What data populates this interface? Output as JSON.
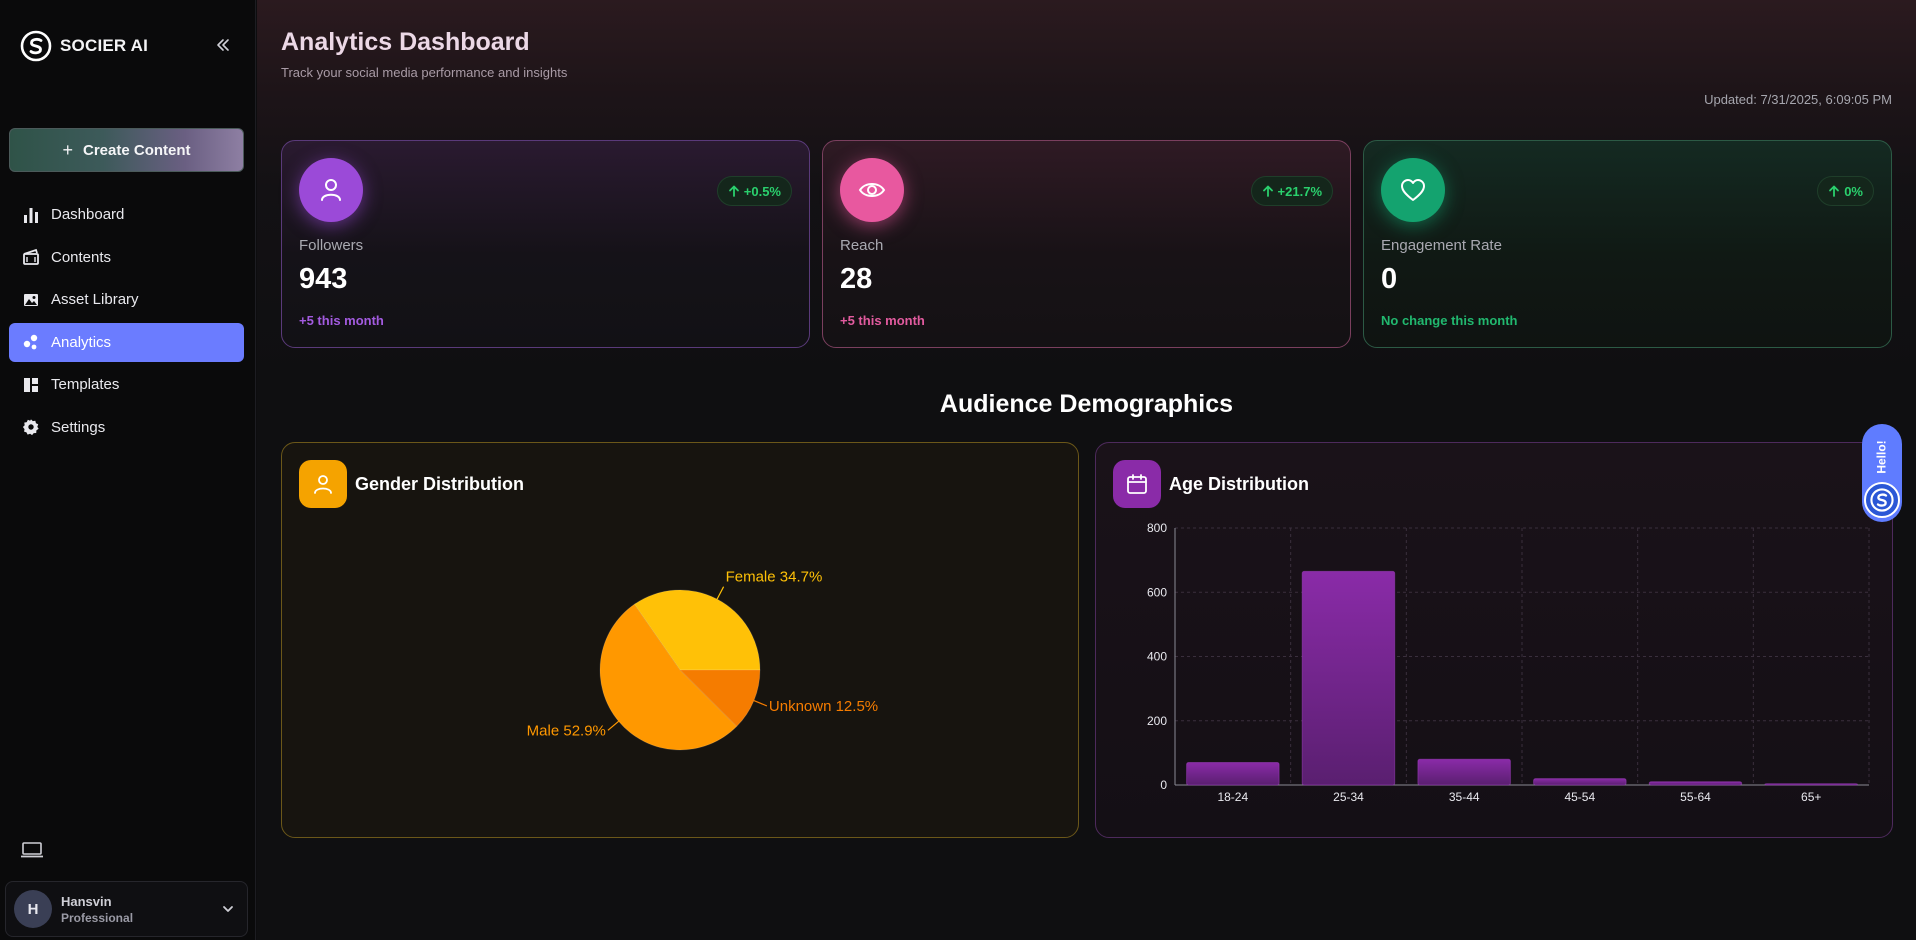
{
  "app": {
    "brand": "SOCIER AI"
  },
  "sidebar": {
    "create_label": "Create Content",
    "items": [
      {
        "label": "Dashboard",
        "icon": "bar-chart-icon"
      },
      {
        "label": "Contents",
        "icon": "clapperboard-icon"
      },
      {
        "label": "Asset Library",
        "icon": "image-icon"
      },
      {
        "label": "Analytics",
        "icon": "analytics-icon",
        "active": true
      },
      {
        "label": "Templates",
        "icon": "layout-icon"
      },
      {
        "label": "Settings",
        "icon": "gear-icon"
      }
    ],
    "user": {
      "initial": "H",
      "name": "Hansvin",
      "plan": "Professional"
    }
  },
  "header": {
    "title": "Analytics Dashboard",
    "subtitle": "Track your social media performance and insights",
    "updated": "Updated: 7/31/2025, 6:09:05 PM"
  },
  "stats": [
    {
      "label": "Followers",
      "value": "943",
      "change": "+0.5%",
      "note": "+5 this month",
      "icon": "user-icon",
      "color": "#9b4ad8"
    },
    {
      "label": "Reach",
      "value": "28",
      "change": "+21.7%",
      "note": "+5 this month",
      "icon": "eye-icon",
      "color": "#e8589f"
    },
    {
      "label": "Engagement Rate",
      "value": "0",
      "change": "0%",
      "note": "No change this month",
      "icon": "heart-icon",
      "color": "#14a36f"
    }
  ],
  "demographics": {
    "title": "Audience Demographics",
    "gender_title": "Gender Distribution",
    "age_title": "Age Distribution"
  },
  "widget": {
    "label": "Hello!"
  },
  "chart_data": [
    {
      "type": "pie",
      "title": "Gender Distribution",
      "categories": [
        "Female",
        "Unknown",
        "Male"
      ],
      "values": [
        34.7,
        12.5,
        52.9
      ],
      "labels": [
        "Female 34.7%",
        "Unknown 12.5%",
        "Male 52.9%"
      ],
      "colors": [
        "#ffc107",
        "#f57c00",
        "#ff9800"
      ]
    },
    {
      "type": "bar",
      "title": "Age Distribution",
      "categories": [
        "18-24",
        "25-34",
        "35-44",
        "45-54",
        "55-64",
        "65+"
      ],
      "values": [
        70,
        665,
        80,
        20,
        10,
        4
      ],
      "ylim": [
        0,
        800
      ],
      "yticks": [
        0,
        200,
        400,
        600,
        800
      ],
      "color": "#7a2a9a"
    }
  ]
}
